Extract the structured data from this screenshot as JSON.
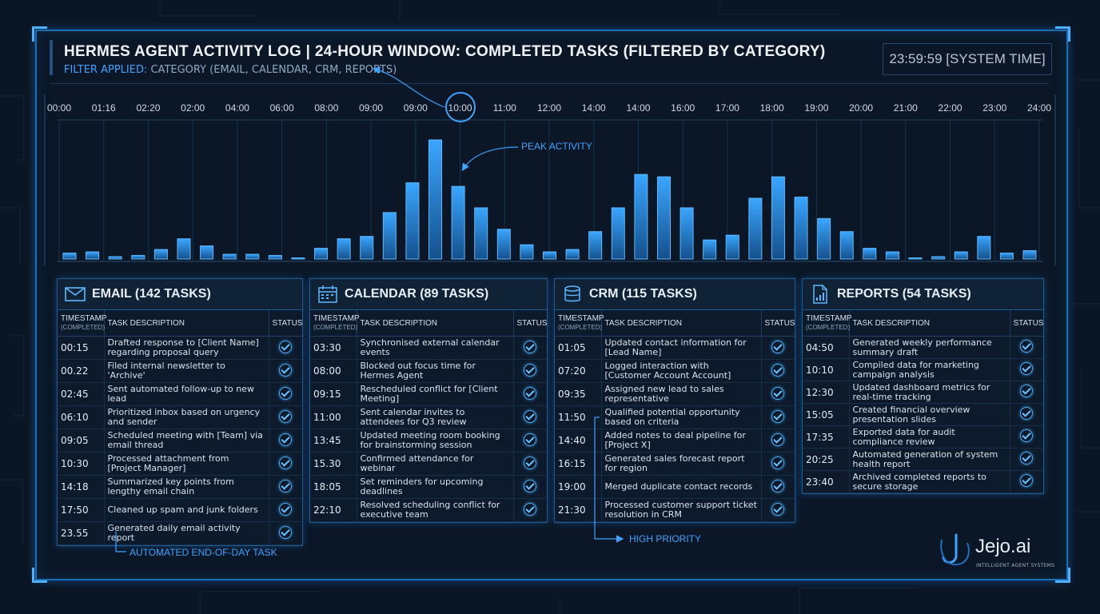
{
  "header": {
    "title": "HERMES AGENT ACTIVITY LOG | 24-HOUR WINDOW: COMPLETED TASKS (FILTERED BY CATEGORY)",
    "filter_label": "FILTER APPLIED:",
    "filter_value": "CATEGORY (EMAIL, CALENDAR, CRM, REPORTS)",
    "system_time": "23:59:59 [SYSTEM TIME]"
  },
  "chart_data": {
    "type": "bar",
    "x_ticks": [
      "00:00",
      "01:16",
      "02:20",
      "02:00",
      "04:00",
      "06:00",
      "08:00",
      "09:00",
      "09:00",
      "10:00",
      "11:00",
      "12:00",
      "14:00",
      "14:00",
      "16:00",
      "17:00",
      "18:00",
      "19:00",
      "20:00",
      "21:00",
      "22:00",
      "23:00",
      "24:00"
    ],
    "highlighted_tick": "10:00",
    "values": [
      0.05,
      0.06,
      0.02,
      0.03,
      0.08,
      0.17,
      0.11,
      0.04,
      0.04,
      0.03,
      0.01,
      0.09,
      0.17,
      0.19,
      0.39,
      0.64,
      1.0,
      0.61,
      0.43,
      0.25,
      0.12,
      0.06,
      0.08,
      0.23,
      0.43,
      0.71,
      0.69,
      0.43,
      0.16,
      0.2,
      0.51,
      0.69,
      0.52,
      0.34,
      0.23,
      0.09,
      0.06,
      0.01,
      0.02,
      0.06,
      0.19,
      0.05,
      0.07
    ],
    "ylim": [
      0,
      1
    ],
    "annotation": "PEAK ACTIVITY",
    "grid": true
  },
  "panels": [
    {
      "title": "EMAIL (142 TASKS)",
      "icon": "envelope-icon",
      "col_timestamp": "TIMESTAMP",
      "col_timestamp_sub": "(COMPLETED)",
      "col_task": "TASK DESCRIPTION",
      "col_status": "STATUS",
      "rows": [
        {
          "time": "00:15",
          "task": "Drafted response to [Client Name] regarding proposal query"
        },
        {
          "time": "00.22",
          "task": "Filed internal newsletter to 'Archive'"
        },
        {
          "time": "02:45",
          "task": "Sent automated follow-up to new lead"
        },
        {
          "time": "06:10",
          "task": "Prioritized inbox based on urgency and sender"
        },
        {
          "time": "09:05",
          "task": "Scheduled meeting with [Team] via email thread"
        },
        {
          "time": "10:30",
          "task": "Processed attachment from [Project Manager]"
        },
        {
          "time": "14:18",
          "task": "Summarized key points from lengthy email chain"
        },
        {
          "time": "17:50",
          "task": "Cleaned up spam and junk folders"
        },
        {
          "time": "23.55",
          "task": "Generated daily email activity report"
        }
      ]
    },
    {
      "title": "CALENDAR (89 TASKS)",
      "icon": "calendar-icon",
      "col_timestamp": "TIMESTAMP",
      "col_timestamp_sub": "(COMPLETED)",
      "col_task": "TASK DESCRIPTION",
      "col_status": "STATUS",
      "rows": [
        {
          "time": "03:30",
          "task": "Synchronised external calendar events"
        },
        {
          "time": "08:00",
          "task": "Blocked out focus time for Hermes Agent"
        },
        {
          "time": "09:15",
          "task": "Rescheduled conflict for [Client Meeting]"
        },
        {
          "time": "11:00",
          "task": "Sent calendar invites to attendees for Q3 review"
        },
        {
          "time": "13:45",
          "task": "Updated meeting room booking for brainstorming session"
        },
        {
          "time": "15.30",
          "task": "Confirmed attendance for webinar"
        },
        {
          "time": "18:05",
          "task": "Set reminders for upcoming deadlines"
        },
        {
          "time": "22:10",
          "task": "Resolved scheduling conflict for executive team"
        }
      ]
    },
    {
      "title": "CRM (115 TASKS)",
      "icon": "database-icon",
      "col_timestamp": "TIMESTAMP",
      "col_timestamp_sub": "(COMPLETED)",
      "col_task": "TASK DESCRIPTION",
      "col_status": "STATUS",
      "rows": [
        {
          "time": "01:05",
          "task": "Updated contact information for [Lead Name]"
        },
        {
          "time": "07:20",
          "task": "Logged interaction with [Customer Account Account]"
        },
        {
          "time": "09:35",
          "task": "Assigned new lead to sales representative"
        },
        {
          "time": "11:50",
          "task": "Qualified potential opportunity based on criteria"
        },
        {
          "time": "14:40",
          "task": "Added notes to deal pipeline for [Project X]"
        },
        {
          "time": "16:15",
          "task": "Generated sales forecast report for region"
        },
        {
          "time": "19:00",
          "task": "Merged duplicate contact records"
        },
        {
          "time": "21:30",
          "task": "Processed customer support ticket resolution in CRM"
        }
      ]
    },
    {
      "title": "REPORTS (54 TASKS)",
      "icon": "report-icon",
      "col_timestamp": "TIMESTAMP",
      "col_timestamp_sub": "(COMPLETED)",
      "col_task": "TASK DESCRIPTION",
      "col_status": "STATUS",
      "rows": [
        {
          "time": "04:50",
          "task": "Generated weekly performance summary draft"
        },
        {
          "time": "10:10",
          "task": "Compiled data for marketing campaign analysis"
        },
        {
          "time": "12:30",
          "task": "Updated dashboard metrics for real-time tracking"
        },
        {
          "time": "15:05",
          "task": "Created financial overview presentation slides"
        },
        {
          "time": "17:35",
          "task": "Exported data for audit compliance review"
        },
        {
          "time": "20:25",
          "task": "Automated generation of system health report"
        },
        {
          "time": "23:40",
          "task": "Archived completed reports to secure storage"
        }
      ]
    }
  ],
  "annotations": {
    "end_of_day": "AUTOMATED END-OF-DAY TASK",
    "high_priority": "HIGH PRIORITY"
  },
  "brand": {
    "name": "Jejo.ai",
    "tagline": "INTELLIGENT AGENT SYSTEMS"
  },
  "colors": {
    "accent": "#3fa2ff",
    "background": "#0b1726",
    "bar": "#2a8cf0",
    "border": "#1f5b93"
  }
}
